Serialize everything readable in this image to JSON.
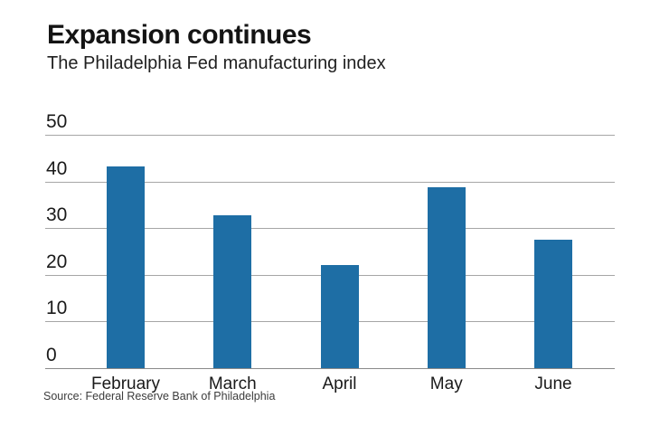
{
  "header": {
    "title": "Expansion continues",
    "subtitle": "The Philadelphia Fed manufacturing index"
  },
  "source": {
    "label": "Source: Federal Reserve Bank of Philadelphia"
  },
  "colors": {
    "bar": "#1e6ea5",
    "gridline": "#a6a6a6",
    "zero_line": "#8a8a8a",
    "text": "#1a1a1a"
  },
  "chart_data": {
    "type": "bar",
    "title": "Expansion continues",
    "subtitle": "The Philadelphia Fed manufacturing index",
    "categories": [
      "February",
      "March",
      "April",
      "May",
      "June"
    ],
    "values": [
      43.3,
      32.8,
      22.0,
      38.8,
      27.6
    ],
    "xlabel": "",
    "ylabel": "",
    "yticks": [
      0,
      10,
      20,
      30,
      40,
      50
    ],
    "ylim": [
      0,
      50
    ],
    "grid": true,
    "legend": false,
    "bar_color": "#1e6ea5",
    "source": "Source: Federal Reserve Bank of Philadelphia"
  }
}
